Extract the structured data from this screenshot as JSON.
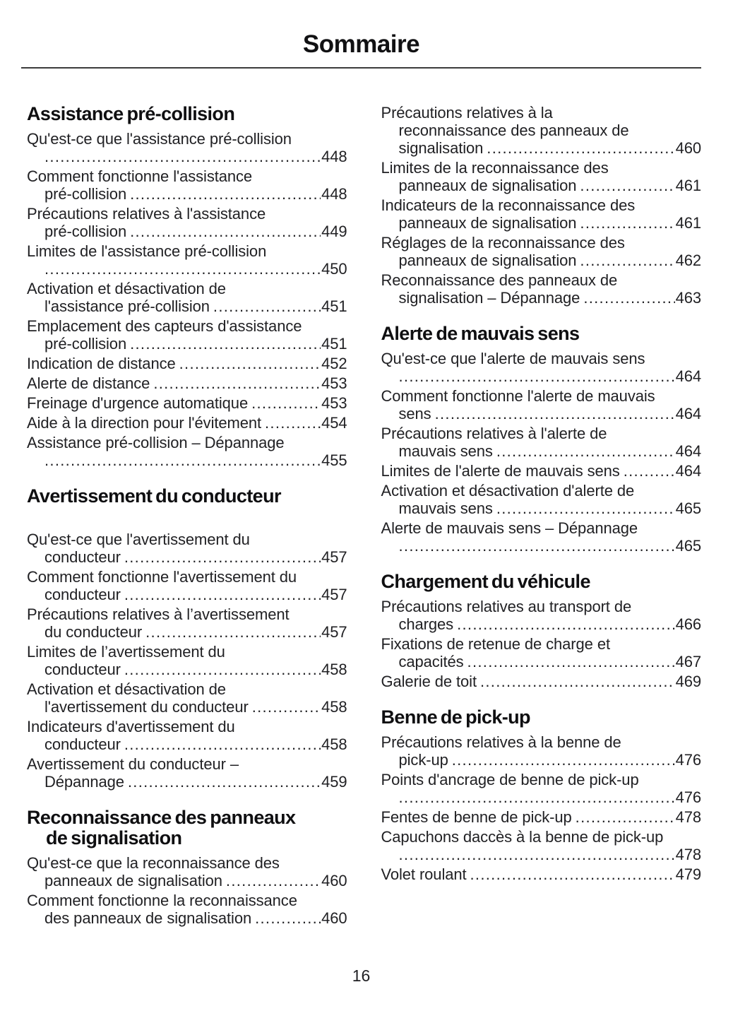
{
  "page": {
    "title": "Sommaire",
    "page_number": "16"
  },
  "toc": {
    "columns": [
      {
        "blocks": [
          {
            "heading_lines": [
              "Assistance pré-collision"
            ],
            "gap_after_heading": false,
            "entries": [
              {
                "lines": [
                  "Qu'est-ce que l'assistance pré-collision",
                  ""
                ],
                "page": "448"
              },
              {
                "lines": [
                  "Comment fonctionne l'assistance",
                  "pré-collision"
                ],
                "page": "448"
              },
              {
                "lines": [
                  "Précautions relatives à l'assistance",
                  "pré-collision"
                ],
                "page": "449"
              },
              {
                "lines": [
                  "Limites de l'assistance pré-collision",
                  ""
                ],
                "page": "450"
              },
              {
                "lines": [
                  "Activation et désactivation de",
                  "l'assistance pré-collision"
                ],
                "page": "451"
              },
              {
                "lines": [
                  "Emplacement des capteurs d'assistance",
                  "pré-collision"
                ],
                "page": "451"
              },
              {
                "lines": [
                  "Indication de distance"
                ],
                "page": "452"
              },
              {
                "lines": [
                  "Alerte de distance"
                ],
                "page": "453"
              },
              {
                "lines": [
                  "Freinage d'urgence automatique"
                ],
                "page": "453"
              },
              {
                "lines": [
                  "Aide à la direction pour l'évitement"
                ],
                "page": "454"
              },
              {
                "lines": [
                  "Assistance pré-collision – Dépannage",
                  ""
                ],
                "page": "455"
              }
            ]
          },
          {
            "heading_lines": [
              "Avertissement du conducteur"
            ],
            "gap_after_heading": true,
            "entries": [
              {
                "lines": [
                  "Qu'est-ce que l'avertissement du",
                  "conducteur"
                ],
                "page": "457"
              },
              {
                "lines": [
                  "Comment fonctionne l'avertissement du",
                  "conducteur"
                ],
                "page": "457"
              },
              {
                "lines": [
                  "Précautions relatives à l’avertissement",
                  "du conducteur"
                ],
                "page": "457"
              },
              {
                "lines": [
                  "Limites de l’avertissement du",
                  "conducteur"
                ],
                "page": "458"
              },
              {
                "lines": [
                  "Activation et désactivation de",
                  "l'avertissement du conducteur"
                ],
                "page": "458"
              },
              {
                "lines": [
                  "Indicateurs d'avertissement du",
                  "conducteur"
                ],
                "page": "458"
              },
              {
                "lines": [
                  "Avertissement du conducteur –",
                  "Dépannage"
                ],
                "page": "459"
              }
            ]
          },
          {
            "heading_lines": [
              "Reconnaissance des panneaux",
              "de signalisation"
            ],
            "gap_after_heading": false,
            "entries": [
              {
                "lines": [
                  "Qu'est-ce que la reconnaissance des",
                  "panneaux de signalisation"
                ],
                "page": "460"
              },
              {
                "lines": [
                  "Comment fonctionne la reconnaissance",
                  "des panneaux de signalisation"
                ],
                "page": "460"
              }
            ]
          }
        ]
      },
      {
        "blocks": [
          {
            "heading_lines": [],
            "gap_after_heading": false,
            "entries": [
              {
                "lines": [
                  "Précautions relatives à la",
                  "reconnaissance des panneaux de",
                  "signalisation"
                ],
                "page": "460"
              },
              {
                "lines": [
                  "Limites de la reconnaissance des",
                  "panneaux de signalisation"
                ],
                "page": "461"
              },
              {
                "lines": [
                  "Indicateurs de la reconnaissance des",
                  "panneaux de signalisation"
                ],
                "page": "461"
              },
              {
                "lines": [
                  "Réglages de la reconnaissance des",
                  "panneaux de signalisation"
                ],
                "page": "462"
              },
              {
                "lines": [
                  "Reconnaissance des panneaux de",
                  "signalisation – Dépannage"
                ],
                "page": "463"
              }
            ]
          },
          {
            "heading_lines": [
              "Alerte de mauvais sens"
            ],
            "gap_after_heading": false,
            "entries": [
              {
                "lines": [
                  "Qu'est-ce que l'alerte de mauvais sens",
                  ""
                ],
                "page": "464"
              },
              {
                "lines": [
                  "Comment fonctionne l'alerte de mauvais",
                  "sens"
                ],
                "page": "464"
              },
              {
                "lines": [
                  "Précautions relatives à l'alerte de",
                  "mauvais sens"
                ],
                "page": "464"
              },
              {
                "lines": [
                  "Limites de l'alerte de mauvais sens"
                ],
                "page": "464"
              },
              {
                "lines": [
                  "Activation et désactivation d'alerte de",
                  "mauvais sens"
                ],
                "page": "465"
              },
              {
                "lines": [
                  "Alerte de mauvais sens – Dépannage",
                  ""
                ],
                "page": "465"
              }
            ]
          },
          {
            "heading_lines": [
              "Chargement du véhicule"
            ],
            "gap_after_heading": false,
            "entries": [
              {
                "lines": [
                  "Précautions relatives au transport de",
                  "charges"
                ],
                "page": "466"
              },
              {
                "lines": [
                  "Fixations de retenue de charge et",
                  "capacités"
                ],
                "page": "467"
              },
              {
                "lines": [
                  "Galerie de toit"
                ],
                "page": "469"
              }
            ]
          },
          {
            "heading_lines": [
              "Benne de pick-up"
            ],
            "gap_after_heading": false,
            "entries": [
              {
                "lines": [
                  "Précautions relatives à la benne de",
                  "pick-up"
                ],
                "page": "476"
              },
              {
                "lines": [
                  "Points d'ancrage de benne de pick-up",
                  ""
                ],
                "page": "476"
              },
              {
                "lines": [
                  "Fentes de benne de pick-up"
                ],
                "page": "478"
              },
              {
                "lines": [
                  "Capuchons daccès à la benne de pick-up",
                  ""
                ],
                "page": "478"
              },
              {
                "lines": [
                  "Volet roulant"
                ],
                "page": "479"
              }
            ]
          }
        ]
      }
    ]
  }
}
